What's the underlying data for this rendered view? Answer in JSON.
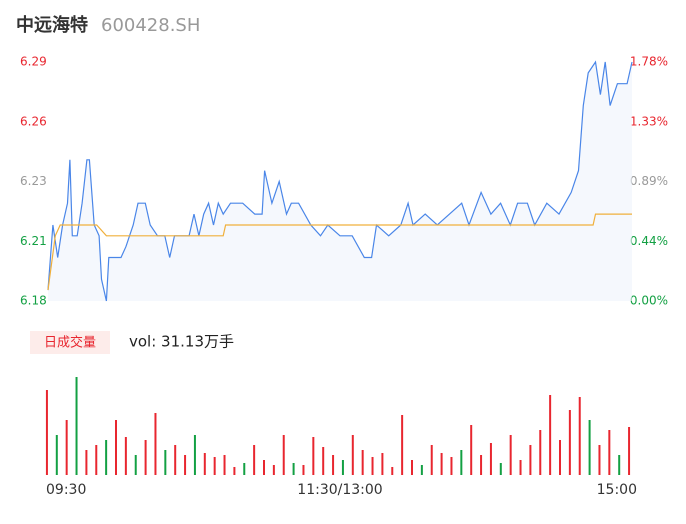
{
  "chart_data": {
    "type": "line",
    "title": "中远海特",
    "subtitle": "600428.SH",
    "xlim": [
      0,
      240
    ],
    "xticks": [
      {
        "value": 0,
        "label": "09:30"
      },
      {
        "value": 120,
        "label": "11:30/13:00"
      },
      {
        "value": 240,
        "label": "15:00"
      }
    ],
    "ylim": [
      6.18,
      6.29
    ],
    "yticks": [
      {
        "value": 6.18,
        "label": "6.18"
      },
      {
        "value": 6.2075,
        "label": "6.21"
      },
      {
        "value": 6.235,
        "label": "6.23"
      },
      {
        "value": 6.2625,
        "label": "6.26"
      },
      {
        "value": 6.29,
        "label": "6.29"
      }
    ],
    "y2lim": [
      0,
      1.78
    ],
    "y2ticks": [
      {
        "value": 0,
        "label": "0.00%"
      },
      {
        "value": 0.445,
        "label": "0.44%"
      },
      {
        "value": 0.89,
        "label": "0.89%"
      },
      {
        "value": 1.335,
        "label": "1.33%"
      },
      {
        "value": 1.78,
        "label": "1.78%"
      }
    ],
    "ytick_colors": [
      "#13a043",
      "#13a043",
      "#999999",
      "#e8262f",
      "#e8262f"
    ],
    "series": [
      {
        "name": "price",
        "color": "#4a86e8",
        "x": [
          0,
          2,
          4,
          6,
          8,
          9,
          10,
          12,
          14,
          16,
          17,
          19,
          21,
          22,
          24,
          25,
          30,
          32,
          35,
          37,
          40,
          42,
          45,
          48,
          50,
          52,
          58,
          60,
          62,
          64,
          66,
          68,
          70,
          72,
          75,
          80,
          85,
          88,
          89,
          92,
          95,
          98,
          100,
          103,
          108,
          112,
          115,
          120,
          125,
          130,
          133,
          135,
          140,
          145,
          148,
          150,
          155,
          160,
          165,
          170,
          173,
          178,
          182,
          186,
          190,
          193,
          197,
          200,
          205,
          210,
          215,
          218,
          220,
          222,
          225,
          227,
          229,
          231,
          234,
          238,
          240
        ],
        "values": [
          6.185,
          6.215,
          6.2,
          6.215,
          6.225,
          6.245,
          6.21,
          6.21,
          6.225,
          6.245,
          6.245,
          6.215,
          6.21,
          6.19,
          6.18,
          6.2,
          6.2,
          6.205,
          6.215,
          6.225,
          6.225,
          6.215,
          6.21,
          6.21,
          6.2,
          6.21,
          6.21,
          6.22,
          6.21,
          6.22,
          6.225,
          6.215,
          6.225,
          6.22,
          6.225,
          6.225,
          6.22,
          6.22,
          6.24,
          6.225,
          6.235,
          6.22,
          6.225,
          6.225,
          6.215,
          6.21,
          6.215,
          6.21,
          6.21,
          6.2,
          6.2,
          6.215,
          6.21,
          6.215,
          6.225,
          6.215,
          6.22,
          6.215,
          6.22,
          6.225,
          6.215,
          6.23,
          6.22,
          6.225,
          6.215,
          6.225,
          6.225,
          6.215,
          6.225,
          6.22,
          6.23,
          6.24,
          6.27,
          6.285,
          6.29,
          6.275,
          6.29,
          6.27,
          6.28,
          6.28,
          6.29
        ]
      },
      {
        "name": "average",
        "color": "#f0b03c",
        "x": [
          0,
          3,
          5,
          20,
          24,
          72,
          73,
          224,
          225,
          240
        ],
        "values": [
          6.185,
          6.21,
          6.215,
          6.215,
          6.21,
          6.21,
          6.215,
          6.215,
          6.22,
          6.22
        ]
      }
    ],
    "volume": {
      "button": "日成交量",
      "label": "vol: 31.13万手",
      "vlim": [
        0,
        100
      ],
      "values": [
        85,
        40,
        55,
        98,
        25,
        30,
        35,
        55,
        38,
        20,
        35,
        62,
        25,
        30,
        20,
        40,
        22,
        18,
        20,
        8,
        12,
        30,
        15,
        10,
        40,
        12,
        10,
        38,
        28,
        20,
        15,
        40,
        25,
        18,
        22,
        8,
        60,
        15,
        10,
        30,
        22,
        18,
        25,
        50,
        20,
        32,
        12,
        40,
        15,
        30,
        45,
        80,
        35,
        65,
        78,
        55,
        30,
        45,
        20,
        48
      ],
      "colors": [
        "#e8262f",
        "#13a043",
        "#e8262f",
        "#13a043",
        "#e8262f",
        "#e8262f",
        "#13a043",
        "#e8262f",
        "#e8262f",
        "#13a043",
        "#e8262f",
        "#e8262f",
        "#13a043",
        "#e8262f",
        "#e8262f",
        "#13a043",
        "#e8262f",
        "#e8262f",
        "#e8262f",
        "#e8262f",
        "#13a043",
        "#e8262f",
        "#e8262f",
        "#e8262f",
        "#e8262f",
        "#13a043",
        "#e8262f",
        "#e8262f",
        "#e8262f",
        "#e8262f",
        "#13a043",
        "#e8262f",
        "#e8262f",
        "#e8262f",
        "#e8262f",
        "#e8262f",
        "#e8262f",
        "#e8262f",
        "#13a043",
        "#e8262f",
        "#e8262f",
        "#e8262f",
        "#13a043",
        "#e8262f",
        "#e8262f",
        "#e8262f",
        "#13a043",
        "#e8262f",
        "#e8262f",
        "#e8262f",
        "#e8262f",
        "#e8262f",
        "#e8262f",
        "#e8262f",
        "#e8262f",
        "#13a043",
        "#e8262f",
        "#e8262f",
        "#13a043",
        "#e8262f"
      ]
    }
  }
}
